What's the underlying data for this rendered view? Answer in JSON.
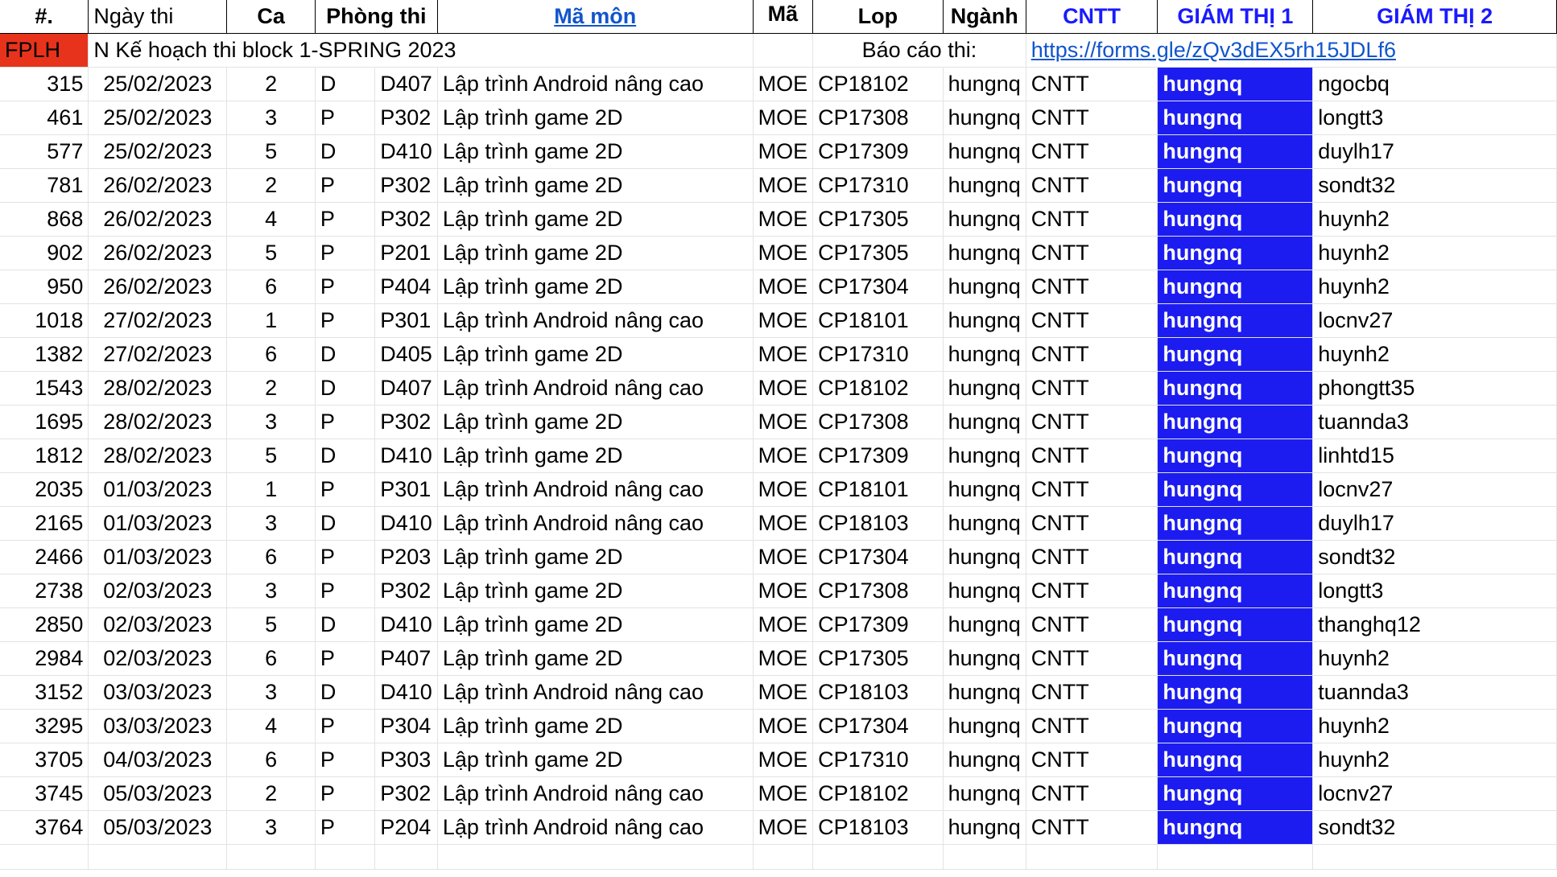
{
  "headers": {
    "num": "#.",
    "date": "Ngày thi",
    "shift": "Ca",
    "room": "Phòng thi",
    "subject": "Mã môn",
    "code": "Mã",
    "class": "Lop",
    "major": "Ngành",
    "cntt": "CNTT",
    "gt1": "GIÁM THỊ 1",
    "gt2": "GIÁM THỊ 2"
  },
  "banner": {
    "tag": "FPLH",
    "title": "N Kế hoạch thi block 1-SPRING 2023",
    "report_label": "Báo cáo thi:",
    "report_link": "https://forms.gle/zQv3dEX5rh15JDLf6"
  },
  "rows": [
    {
      "num": "315",
      "date": "25/02/2023",
      "shift": "2",
      "block": "D",
      "room": "D407",
      "subject": "Lập trình Android nâng cao",
      "code": "MOE",
      "class": "CP18102",
      "major": "hungnq",
      "dept": "CNTT",
      "gt1": "hungnq",
      "gt2": "ngocbq"
    },
    {
      "num": "461",
      "date": "25/02/2023",
      "shift": "3",
      "block": "P",
      "room": "P302",
      "subject": "Lập trình game 2D",
      "code": "MOE",
      "class": "CP17308",
      "major": "hungnq",
      "dept": "CNTT",
      "gt1": "hungnq",
      "gt2": "longtt3"
    },
    {
      "num": "577",
      "date": "25/02/2023",
      "shift": "5",
      "block": "D",
      "room": "D410",
      "subject": "Lập trình game 2D",
      "code": "MOE",
      "class": "CP17309",
      "major": "hungnq",
      "dept": "CNTT",
      "gt1": "hungnq",
      "gt2": "duylh17"
    },
    {
      "num": "781",
      "date": "26/02/2023",
      "shift": "2",
      "block": "P",
      "room": "P302",
      "subject": "Lập trình game 2D",
      "code": "MOE",
      "class": "CP17310",
      "major": "hungnq",
      "dept": "CNTT",
      "gt1": "hungnq",
      "gt2": "sondt32"
    },
    {
      "num": "868",
      "date": "26/02/2023",
      "shift": "4",
      "block": "P",
      "room": "P302",
      "subject": "Lập trình game 2D",
      "code": "MOE",
      "class": "CP17305",
      "major": "hungnq",
      "dept": "CNTT",
      "gt1": "hungnq",
      "gt2": "huynh2"
    },
    {
      "num": "902",
      "date": "26/02/2023",
      "shift": "5",
      "block": "P",
      "room": "P201",
      "subject": "Lập trình game 2D",
      "code": "MOE",
      "class": "CP17305",
      "major": "hungnq",
      "dept": "CNTT",
      "gt1": "hungnq",
      "gt2": "huynh2"
    },
    {
      "num": "950",
      "date": "26/02/2023",
      "shift": "6",
      "block": "P",
      "room": "P404",
      "subject": "Lập trình game 2D",
      "code": "MOE",
      "class": "CP17304",
      "major": "hungnq",
      "dept": "CNTT",
      "gt1": "hungnq",
      "gt2": "huynh2"
    },
    {
      "num": "1018",
      "date": "27/02/2023",
      "shift": "1",
      "block": "P",
      "room": "P301",
      "subject": "Lập trình Android nâng cao",
      "code": "MOE",
      "class": "CP18101",
      "major": "hungnq",
      "dept": "CNTT",
      "gt1": "hungnq",
      "gt2": "locnv27"
    },
    {
      "num": "1382",
      "date": "27/02/2023",
      "shift": "6",
      "block": "D",
      "room": "D405",
      "subject": "Lập trình game 2D",
      "code": "MOE",
      "class": "CP17310",
      "major": "hungnq",
      "dept": "CNTT",
      "gt1": "hungnq",
      "gt2": "huynh2"
    },
    {
      "num": "1543",
      "date": "28/02/2023",
      "shift": "2",
      "block": "D",
      "room": "D407",
      "subject": "Lập trình Android nâng cao",
      "code": "MOE",
      "class": "CP18102",
      "major": "hungnq",
      "dept": "CNTT",
      "gt1": "hungnq",
      "gt2": "phongtt35"
    },
    {
      "num": "1695",
      "date": "28/02/2023",
      "shift": "3",
      "block": "P",
      "room": "P302",
      "subject": "Lập trình game 2D",
      "code": "MOE",
      "class": "CP17308",
      "major": "hungnq",
      "dept": "CNTT",
      "gt1": "hungnq",
      "gt2": "tuannda3"
    },
    {
      "num": "1812",
      "date": "28/02/2023",
      "shift": "5",
      "block": "D",
      "room": "D410",
      "subject": "Lập trình game 2D",
      "code": "MOE",
      "class": "CP17309",
      "major": "hungnq",
      "dept": "CNTT",
      "gt1": "hungnq",
      "gt2": "linhtd15"
    },
    {
      "num": "2035",
      "date": "01/03/2023",
      "shift": "1",
      "block": "P",
      "room": "P301",
      "subject": "Lập trình Android nâng cao",
      "code": "MOE",
      "class": "CP18101",
      "major": "hungnq",
      "dept": "CNTT",
      "gt1": "hungnq",
      "gt2": "locnv27"
    },
    {
      "num": "2165",
      "date": "01/03/2023",
      "shift": "3",
      "block": "D",
      "room": "D410",
      "subject": "Lập trình Android nâng cao",
      "code": "MOE",
      "class": "CP18103",
      "major": "hungnq",
      "dept": "CNTT",
      "gt1": "hungnq",
      "gt2": "duylh17"
    },
    {
      "num": "2466",
      "date": "01/03/2023",
      "shift": "6",
      "block": "P",
      "room": "P203",
      "subject": "Lập trình game 2D",
      "code": "MOE",
      "class": "CP17304",
      "major": "hungnq",
      "dept": "CNTT",
      "gt1": "hungnq",
      "gt2": "sondt32"
    },
    {
      "num": "2738",
      "date": "02/03/2023",
      "shift": "3",
      "block": "P",
      "room": "P302",
      "subject": "Lập trình game 2D",
      "code": "MOE",
      "class": "CP17308",
      "major": "hungnq",
      "dept": "CNTT",
      "gt1": "hungnq",
      "gt2": "longtt3"
    },
    {
      "num": "2850",
      "date": "02/03/2023",
      "shift": "5",
      "block": "D",
      "room": "D410",
      "subject": "Lập trình game 2D",
      "code": "MOE",
      "class": "CP17309",
      "major": "hungnq",
      "dept": "CNTT",
      "gt1": "hungnq",
      "gt2": "thanghq12"
    },
    {
      "num": "2984",
      "date": "02/03/2023",
      "shift": "6",
      "block": "P",
      "room": "P407",
      "subject": "Lập trình game 2D",
      "code": "MOE",
      "class": "CP17305",
      "major": "hungnq",
      "dept": "CNTT",
      "gt1": "hungnq",
      "gt2": "huynh2"
    },
    {
      "num": "3152",
      "date": "03/03/2023",
      "shift": "3",
      "block": "D",
      "room": "D410",
      "subject": "Lập trình Android nâng cao",
      "code": "MOE",
      "class": "CP18103",
      "major": "hungnq",
      "dept": "CNTT",
      "gt1": "hungnq",
      "gt2": "tuannda3"
    },
    {
      "num": "3295",
      "date": "03/03/2023",
      "shift": "4",
      "block": "P",
      "room": "P304",
      "subject": "Lập trình game 2D",
      "code": "MOE",
      "class": "CP17304",
      "major": "hungnq",
      "dept": "CNTT",
      "gt1": "hungnq",
      "gt2": "huynh2"
    },
    {
      "num": "3705",
      "date": "04/03/2023",
      "shift": "6",
      "block": "P",
      "room": "P303",
      "subject": "Lập trình game 2D",
      "code": "MOE",
      "class": "CP17310",
      "major": "hungnq",
      "dept": "CNTT",
      "gt1": "hungnq",
      "gt2": "huynh2"
    },
    {
      "num": "3745",
      "date": "05/03/2023",
      "shift": "2",
      "block": "P",
      "room": "P302",
      "subject": "Lập trình Android nâng cao",
      "code": "MOE",
      "class": "CP18102",
      "major": "hungnq",
      "dept": "CNTT",
      "gt1": "hungnq",
      "gt2": "locnv27"
    },
    {
      "num": "3764",
      "date": "05/03/2023",
      "shift": "3",
      "block": "P",
      "room": "P204",
      "subject": "Lập trình Android nâng cao",
      "code": "MOE",
      "class": "CP18103",
      "major": "hungnq",
      "dept": "CNTT",
      "gt1": "hungnq",
      "gt2": "sondt32"
    }
  ]
}
